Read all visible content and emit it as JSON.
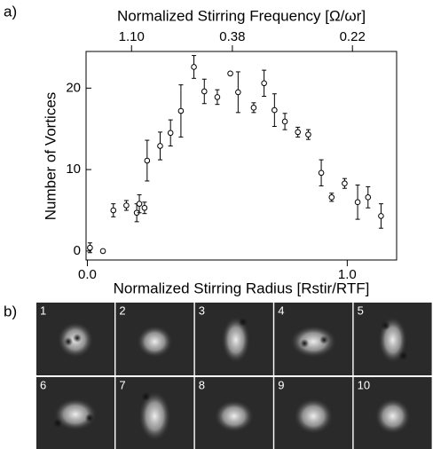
{
  "panel_labels": [
    "a)",
    "b)"
  ],
  "chart_data": {
    "type": "scatter",
    "xlabel": "Normalized Stirring Radius [Rstir/RTF]",
    "x2label": "Normalized Stirring Frequency [Ω/ωr]",
    "ylabel": "Number of Vortices",
    "x": [
      0.01,
      0.06,
      0.1,
      0.15,
      0.19,
      0.2,
      0.22,
      0.23,
      0.28,
      0.32,
      0.36,
      0.41,
      0.45,
      0.5,
      0.55,
      0.58,
      0.64,
      0.68,
      0.72,
      0.76,
      0.81,
      0.85,
      0.9,
      0.94,
      0.99,
      1.04,
      1.08,
      1.13
    ],
    "values": [
      0.4,
      0,
      5.0,
      5.6,
      4.7,
      5.8,
      5.3,
      11.1,
      12.9,
      14.5,
      17.2,
      22.6,
      19.6,
      18.9,
      21.8,
      19.5,
      17.6,
      20.6,
      17.3,
      15.9,
      14.6,
      14.3,
      9.6,
      6.6,
      8.3,
      6.0,
      6.6,
      4.3
    ],
    "errors": [
      0.6,
      0.2,
      0.8,
      0.6,
      1.1,
      1.1,
      0.7,
      2.5,
      1.7,
      1.6,
      3.2,
      1.4,
      1.5,
      0.9,
      0.2,
      2.5,
      0.6,
      1.6,
      2.0,
      1.0,
      0.6,
      0.6,
      1.6,
      0.5,
      0.6,
      2.1,
      1.3,
      1.5
    ],
    "color": "#000000",
    "xlim": [
      -0.005,
      1.19
    ],
    "ylim": [
      -1.1,
      24.5
    ],
    "xticks": [
      {
        "value": 0,
        "label": "0.0"
      },
      {
        "value": 1,
        "label": "1.0"
      }
    ],
    "yticks": [
      0,
      10,
      20
    ],
    "x2ticks": [
      {
        "value": 0.17,
        "label": "1.10"
      },
      {
        "value": 0.558,
        "label": "0.38"
      },
      {
        "value": 1.02,
        "label": "0.22"
      }
    ]
  },
  "images": {
    "labels": [
      "1",
      "2",
      "3",
      "4",
      "5",
      "6",
      "7",
      "8",
      "9",
      "10"
    ]
  }
}
